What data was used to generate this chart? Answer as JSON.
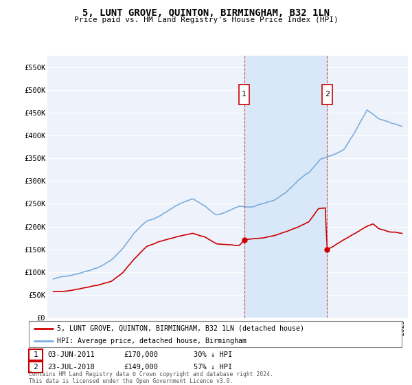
{
  "title": "5, LUNT GROVE, QUINTON, BIRMINGHAM, B32 1LN",
  "subtitle": "Price paid vs. HM Land Registry's House Price Index (HPI)",
  "legend_label_red": "5, LUNT GROVE, QUINTON, BIRMINGHAM, B32 1LN (detached house)",
  "legend_label_blue": "HPI: Average price, detached house, Birmingham",
  "transaction1_date": "03-JUN-2011",
  "transaction1_price": "£170,000",
  "transaction1_hpi": "30% ↓ HPI",
  "transaction1_year": 2011.42,
  "transaction1_value": 170000,
  "transaction2_date": "23-JUL-2018",
  "transaction2_price": "£149,000",
  "transaction2_hpi": "57% ↓ HPI",
  "transaction2_year": 2018.55,
  "transaction2_value": 149000,
  "ylim": [
    0,
    575000
  ],
  "xlim_start": 1994.5,
  "xlim_end": 2025.5,
  "yticks": [
    0,
    50000,
    100000,
    150000,
    200000,
    250000,
    300000,
    350000,
    400000,
    450000,
    500000,
    550000
  ],
  "ytick_labels": [
    "£0",
    "£50K",
    "£100K",
    "£150K",
    "£200K",
    "£250K",
    "£300K",
    "£350K",
    "£400K",
    "£450K",
    "£500K",
    "£550K"
  ],
  "background_color": "#ffffff",
  "plot_bg_color": "#eef2fb",
  "grid_color": "#ffffff",
  "red_color": "#cc0000",
  "blue_color": "#7aaddc",
  "shade_color": "#d8e8f8",
  "marker_box_color": "#cc0000",
  "footnote": "Contains HM Land Registry data © Crown copyright and database right 2024.\nThis data is licensed under the Open Government Licence v3.0."
}
